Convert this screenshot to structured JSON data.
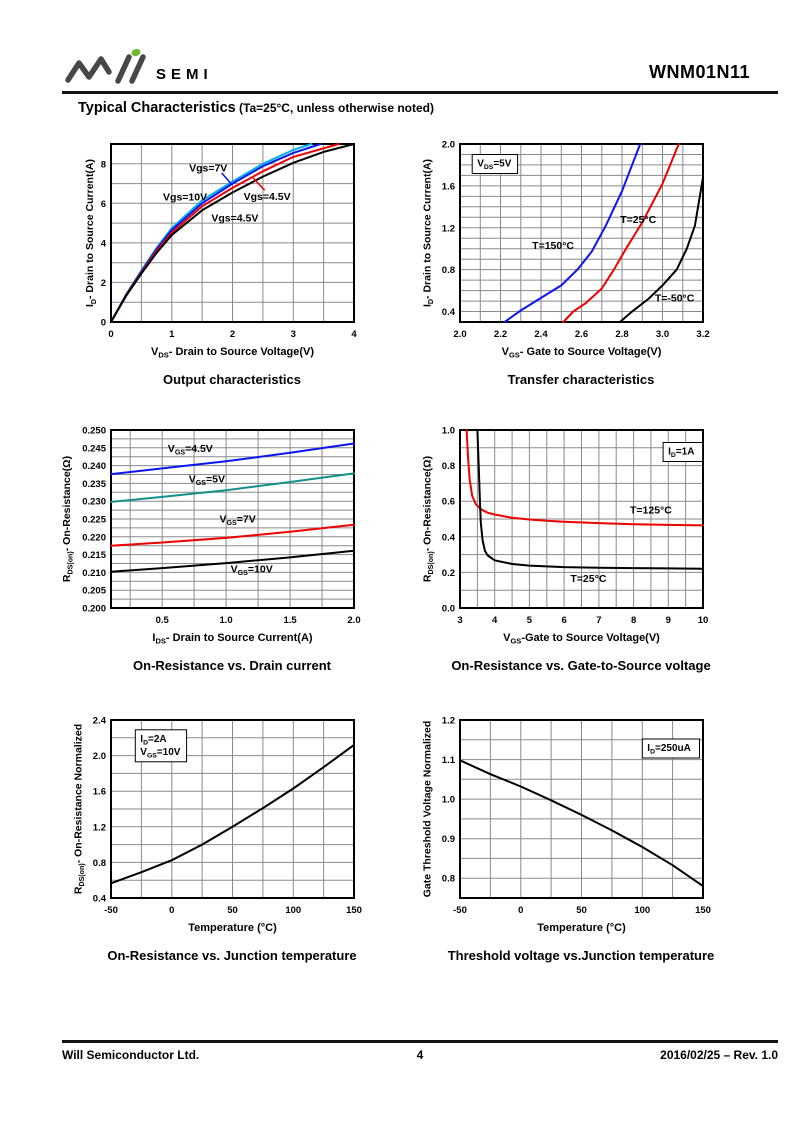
{
  "header": {
    "brand": "SEMI",
    "part_number": "WNM01N11",
    "section_title": "Typical Characteristics",
    "section_note": " (Ta=25°C, unless otherwise noted)"
  },
  "footer": {
    "company": "Will Semiconductor Ltd.",
    "page": "4",
    "revision": "2016/02/25 – Rev. 1.0"
  },
  "colors": {
    "logo_green": "#6FB92C",
    "logo_gray": "#474747",
    "grid": "#8a8a8a",
    "blue": "#0B16EE",
    "cyan": "#00AEEF",
    "red": "#EE0000",
    "teal": "#12918B",
    "black": "#000000"
  },
  "chart_data": [
    {
      "type": "line",
      "title": "Output characteristics",
      "xlabel": "V_{DS}- Drain to Source Voltage(V)",
      "ylabel": "I_{D}- Drain to Source Current(A)",
      "xlim": [
        0,
        4
      ],
      "ylim": [
        0,
        9
      ],
      "xgrid": 0.5,
      "ygrid": 1,
      "grid": true,
      "legend": "inline-labels",
      "xtick_vals": [
        0,
        1,
        2,
        3,
        4
      ],
      "xtick_labels": [
        "0",
        "1",
        "2",
        "3",
        "4"
      ],
      "ytick_vals": [
        0,
        2,
        4,
        6,
        8
      ],
      "ytick_labels": [
        "0",
        "2",
        "4",
        "6",
        "8"
      ],
      "series": [
        {
          "name": "Vgs=10V",
          "color": "#00AEEF",
          "points": [
            [
              0,
              0
            ],
            [
              0.25,
              1.4
            ],
            [
              0.5,
              2.6
            ],
            [
              0.75,
              3.75
            ],
            [
              1,
              4.75
            ],
            [
              1.5,
              6.15
            ],
            [
              2,
              7.1
            ],
            [
              2.5,
              8.0
            ],
            [
              3,
              8.7
            ],
            [
              3.3,
              9.0
            ]
          ]
        },
        {
          "name": "Vgs=7V",
          "color": "#0B16EE",
          "points": [
            [
              0,
              0
            ],
            [
              0.25,
              1.38
            ],
            [
              0.5,
              2.55
            ],
            [
              0.75,
              3.68
            ],
            [
              1,
              4.65
            ],
            [
              1.5,
              6.0
            ],
            [
              2,
              7.0
            ],
            [
              2.5,
              7.88
            ],
            [
              3,
              8.55
            ],
            [
              3.45,
              9.0
            ]
          ]
        },
        {
          "name": "Vgs=4.5V",
          "color": "#EE0000",
          "points": [
            [
              0,
              0
            ],
            [
              0.25,
              1.35
            ],
            [
              0.5,
              2.5
            ],
            [
              0.75,
              3.6
            ],
            [
              1,
              4.52
            ],
            [
              1.5,
              5.85
            ],
            [
              2,
              6.78
            ],
            [
              2.5,
              7.62
            ],
            [
              3,
              8.35
            ],
            [
              3.75,
              9.0
            ]
          ]
        },
        {
          "name": "Vgs=4.5V",
          "color": "#000000",
          "points": [
            [
              0,
              0
            ],
            [
              0.25,
              1.33
            ],
            [
              0.5,
              2.45
            ],
            [
              0.75,
              3.5
            ],
            [
              1,
              4.4
            ],
            [
              1.5,
              5.65
            ],
            [
              2,
              6.55
            ],
            [
              2.5,
              7.35
            ],
            [
              3,
              8.05
            ],
            [
              3.5,
              8.6
            ],
            [
              4,
              9.0
            ]
          ]
        }
      ],
      "labels": [
        {
          "text": "Vgs=7V",
          "x": 1.6,
          "y": 7.79
        },
        {
          "text": "Vgs=10V",
          "x": 1.22,
          "y": 6.31
        },
        {
          "text": "Vgs=4.5V",
          "x": 2.57,
          "y": 6.34
        },
        {
          "text": "Vgs=4.5V",
          "x": 2.04,
          "y": 5.25
        }
      ],
      "leaders": [
        {
          "x1": 1.82,
          "y1": 7.54,
          "x2": 1.98,
          "y2": 6.98,
          "color": "#0B16EE"
        },
        {
          "x1": 2.34,
          "y1": 7.28,
          "x2": 2.53,
          "y2": 6.66,
          "color": "#EE0000"
        }
      ],
      "boxes": []
    },
    {
      "type": "line",
      "title": "Transfer characteristics",
      "xlabel": "V_{GS}- Gate to Source Voltage(V)",
      "ylabel": "I_{D}- Drain to Source Current(A)",
      "xlim": [
        2.0,
        3.2
      ],
      "ylim": [
        0.3,
        2.0
      ],
      "xgrid": 0.1,
      "ygrid": 0.1,
      "grid": true,
      "legend": "inline-labels",
      "xtick_vals": [
        2.0,
        2.2,
        2.4,
        2.6,
        2.8,
        3.0,
        3.2
      ],
      "xtick_labels": [
        "2.0",
        "2.2",
        "2.4",
        "2.6",
        "2.8",
        "3.0",
        "3.2"
      ],
      "ytick_vals": [
        0.4,
        0.8,
        1.2,
        1.6,
        2.0
      ],
      "ytick_labels": [
        "0.4",
        "0.8",
        "1.2",
        "1.6",
        "2.0"
      ],
      "series": [
        {
          "name": "T=150°C",
          "color": "#0B16EE",
          "points": [
            [
              2.22,
              0.3
            ],
            [
              2.3,
              0.41
            ],
            [
              2.4,
              0.53
            ],
            [
              2.5,
              0.65
            ],
            [
              2.58,
              0.8
            ],
            [
              2.65,
              0.97
            ],
            [
              2.72,
              1.22
            ],
            [
              2.8,
              1.55
            ],
            [
              2.89,
              2.0
            ]
          ]
        },
        {
          "name": "T=25°C",
          "color": "#EE0000",
          "points": [
            [
              2.51,
              0.3
            ],
            [
              2.56,
              0.4
            ],
            [
              2.62,
              0.48
            ],
            [
              2.7,
              0.62
            ],
            [
              2.76,
              0.8
            ],
            [
              2.82,
              1.0
            ],
            [
              2.9,
              1.25
            ],
            [
              3.0,
              1.62
            ],
            [
              3.08,
              2.0
            ]
          ]
        },
        {
          "name": "T=-50°C",
          "color": "#000000",
          "points": [
            [
              2.79,
              0.3
            ],
            [
              2.85,
              0.4
            ],
            [
              2.93,
              0.52
            ],
            [
              3.0,
              0.65
            ],
            [
              3.07,
              0.8
            ],
            [
              3.12,
              1.0
            ],
            [
              3.16,
              1.22
            ],
            [
              3.2,
              1.68
            ]
          ]
        }
      ],
      "labels": [
        {
          "text": "T=150°C",
          "x": 2.46,
          "y": 1.03
        },
        {
          "text": "T=25°C",
          "x": 2.88,
          "y": 1.28
        },
        {
          "text": "T=-50°C",
          "x": 3.06,
          "y": 0.53
        }
      ],
      "leaders": [],
      "boxes": [
        {
          "x": 2.06,
          "y": 1.9,
          "lines": [
            "V_{DS}=5V"
          ]
        }
      ]
    },
    {
      "type": "line",
      "title": "On-Resistance vs. Drain current",
      "xlabel": "I_{DS}- Drain to Source Current(A)",
      "ylabel": "R_{DS(on)}- On-Resistance(Ω)",
      "xlim": [
        0.1,
        2.0
      ],
      "ylim": [
        0.2,
        0.25
      ],
      "xgrid": 0.25,
      "ygrid": 0.0025,
      "grid": true,
      "legend": "inline-labels",
      "xtick_vals": [
        0.5,
        1.0,
        1.5,
        2.0
      ],
      "xtick_labels": [
        "0.5",
        "1.0",
        "1.5",
        "2.0"
      ],
      "ytick_vals": [
        0.2,
        0.205,
        0.21,
        0.215,
        0.22,
        0.225,
        0.23,
        0.235,
        0.24,
        0.245,
        0.25
      ],
      "ytick_labels": [
        "0.200",
        "0.205",
        "0.210",
        "0.215",
        "0.220",
        "0.225",
        "0.230",
        "0.235",
        "0.240",
        "0.245",
        "0.250"
      ],
      "series": [
        {
          "name": "VGS=4.5V",
          "color": "#0B16EE",
          "points": [
            [
              0.1,
              0.2376
            ],
            [
              0.5,
              0.2392
            ],
            [
              1.0,
              0.2412
            ],
            [
              1.5,
              0.2436
            ],
            [
              2.0,
              0.2462
            ]
          ]
        },
        {
          "name": "VGS=5V",
          "color": "#12918B",
          "points": [
            [
              0.1,
              0.2298
            ],
            [
              0.5,
              0.2312
            ],
            [
              1.0,
              0.2331
            ],
            [
              1.5,
              0.2354
            ],
            [
              2.0,
              0.2378
            ]
          ]
        },
        {
          "name": "VGS=7V",
          "color": "#EE0000",
          "points": [
            [
              0.1,
              0.2175
            ],
            [
              0.5,
              0.2184
            ],
            [
              1.0,
              0.2197
            ],
            [
              1.5,
              0.2214
            ],
            [
              2.0,
              0.2234
            ]
          ]
        },
        {
          "name": "VGS=10V",
          "color": "#000000",
          "points": [
            [
              0.1,
              0.2102
            ],
            [
              0.5,
              0.2112
            ],
            [
              1.0,
              0.2126
            ],
            [
              1.5,
              0.2142
            ],
            [
              2.0,
              0.2161
            ]
          ]
        }
      ],
      "labels": [
        {
          "text": "V_{GS}=4.5V",
          "x": 0.72,
          "y": 0.2448
        },
        {
          "text": "V_{GS}=5V",
          "x": 0.85,
          "y": 0.2363
        },
        {
          "text": "V_{GS}=7V",
          "x": 1.09,
          "y": 0.225
        },
        {
          "text": "V_{GS}=10V",
          "x": 1.2,
          "y": 0.211
        }
      ],
      "leaders": [],
      "boxes": []
    },
    {
      "type": "line",
      "title": "On-Resistance vs. Gate-to-Source voltage",
      "xlabel": "V_{GS}-Gate to Source Voltage(V)",
      "ylabel": "R_{DS(on)}- On-Resistance(Ω)",
      "xlim": [
        3,
        10
      ],
      "ylim": [
        0,
        1.0
      ],
      "xgrid": 0.5,
      "ygrid": 0.1,
      "grid": true,
      "legend": "inline-labels",
      "xtick_vals": [
        3,
        4,
        5,
        6,
        7,
        8,
        9,
        10
      ],
      "xtick_labels": [
        "3",
        "4",
        "5",
        "6",
        "7",
        "8",
        "9",
        "10"
      ],
      "ytick_vals": [
        0,
        0.2,
        0.4,
        0.6,
        0.8,
        1.0
      ],
      "ytick_labels": [
        "0.0",
        "0.2",
        "0.4",
        "0.6",
        "0.8",
        "1.0"
      ],
      "series": [
        {
          "name": "T=125°C",
          "color": "#EE0000",
          "points": [
            [
              3.19,
              1.0
            ],
            [
              3.23,
              0.85
            ],
            [
              3.28,
              0.72
            ],
            [
              3.35,
              0.63
            ],
            [
              3.45,
              0.585
            ],
            [
              3.6,
              0.555
            ],
            [
              3.8,
              0.535
            ],
            [
              4.0,
              0.525
            ],
            [
              4.5,
              0.507
            ],
            [
              5,
              0.497
            ],
            [
              5.5,
              0.49
            ],
            [
              6,
              0.485
            ],
            [
              7,
              0.477
            ],
            [
              8,
              0.471
            ],
            [
              9,
              0.467
            ],
            [
              10,
              0.464
            ]
          ]
        },
        {
          "name": "T=25°C",
          "color": "#000000",
          "points": [
            [
              3.5,
              1.0
            ],
            [
              3.54,
              0.8
            ],
            [
              3.57,
              0.62
            ],
            [
              3.6,
              0.48
            ],
            [
              3.65,
              0.38
            ],
            [
              3.72,
              0.32
            ],
            [
              3.8,
              0.295
            ],
            [
              4.0,
              0.268
            ],
            [
              4.5,
              0.247
            ],
            [
              5,
              0.238
            ],
            [
              6,
              0.23
            ],
            [
              7,
              0.226
            ],
            [
              8,
              0.224
            ],
            [
              9,
              0.2225
            ],
            [
              10,
              0.221
            ]
          ]
        }
      ],
      "labels": [
        {
          "text": "T=125°C",
          "x": 8.5,
          "y": 0.55
        },
        {
          "text": "T=25°C",
          "x": 6.7,
          "y": 0.165
        }
      ],
      "leaders": [],
      "boxes": [
        {
          "x": 8.85,
          "y": 0.93,
          "lines": [
            "I_{D}=1A"
          ]
        }
      ]
    },
    {
      "type": "line",
      "title": "On-Resistance vs. Junction temperature",
      "xlabel": "Temperature (°C)",
      "ylabel": "R_{DS(on)}- On-Resistance Normalized",
      "xlim": [
        -50,
        150
      ],
      "ylim": [
        0.4,
        2.4
      ],
      "xgrid": 25,
      "ygrid": 0.2,
      "grid": true,
      "legend": "none",
      "xtick_vals": [
        -50,
        0,
        50,
        100,
        150
      ],
      "xtick_labels": [
        "-50",
        "0",
        "50",
        "100",
        "150"
      ],
      "ytick_vals": [
        0.4,
        0.8,
        1.2,
        1.6,
        2.0,
        2.4
      ],
      "ytick_labels": [
        "0.4",
        "0.8",
        "1.2",
        "1.6",
        "2.0",
        "2.4"
      ],
      "series": [
        {
          "name": "RDS(on) normalized",
          "color": "#000000",
          "points": [
            [
              -50,
              0.565
            ],
            [
              -25,
              0.69
            ],
            [
              0,
              0.825
            ],
            [
              25,
              1.0
            ],
            [
              50,
              1.2
            ],
            [
              75,
              1.41
            ],
            [
              100,
              1.63
            ],
            [
              125,
              1.87
            ],
            [
              150,
              2.12
            ]
          ]
        }
      ],
      "labels": [],
      "leaders": [],
      "boxes": [
        {
          "x": -30,
          "y": 2.29,
          "lines": [
            "I_{D}=2A",
            "V_{GS}=10V"
          ]
        }
      ]
    },
    {
      "type": "line",
      "title": "Threshold voltage vs.Junction temperature",
      "xlabel": "Temperature (°C)",
      "ylabel": "Gate Threshold Voltage Normalized",
      "xlim": [
        -50,
        150
      ],
      "ylim": [
        0.75,
        1.2
      ],
      "xgrid": 25,
      "ygrid": 0.05,
      "grid": true,
      "legend": "none",
      "xtick_vals": [
        -50,
        0,
        50,
        100,
        150
      ],
      "xtick_labels": [
        "-50",
        "0",
        "50",
        "100",
        "150"
      ],
      "ytick_vals": [
        0.8,
        0.9,
        1.0,
        1.1,
        1.2
      ],
      "ytick_labels": [
        "0.8",
        "0.9",
        "1.0",
        "1.1",
        "1.2"
      ],
      "series": [
        {
          "name": "Vth normalized",
          "color": "#000000",
          "points": [
            [
              -50,
              1.098
            ],
            [
              -25,
              1.063
            ],
            [
              0,
              1.032
            ],
            [
              25,
              0.997
            ],
            [
              50,
              0.96
            ],
            [
              75,
              0.921
            ],
            [
              100,
              0.879
            ],
            [
              125,
              0.833
            ],
            [
              150,
              0.78
            ]
          ]
        }
      ],
      "labels": [],
      "leaders": [],
      "boxes": [
        {
          "x": 100,
          "y": 1.152,
          "lines": [
            "I_{D}=250uA"
          ]
        }
      ]
    }
  ]
}
